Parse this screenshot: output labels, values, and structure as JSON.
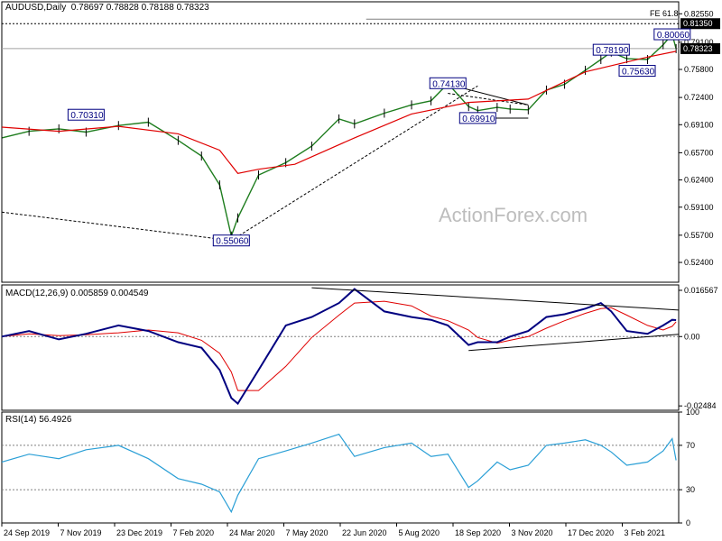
{
  "header": {
    "symbol": "AUDUSD,Daily",
    "ohlc": "0.78697 0.78828 0.78188 0.78323"
  },
  "watermark": "ActionForex.com",
  "colors": {
    "price": "#1e7d1e",
    "ma": "#e00000",
    "macd": "#000080",
    "signal": "#e00000",
    "rsi": "#2a9fd6",
    "label_border": "#000080",
    "grid": "#808080"
  },
  "chart_data": [
    {
      "type": "line",
      "panel": "price",
      "title": "AUDUSD,Daily",
      "ylim": [
        0.5,
        0.84
      ],
      "yticks": [
        "0.82550",
        "0.79100",
        "0.75800",
        "0.72400",
        "0.69100",
        "0.65700",
        "0.62400",
        "0.59100",
        "0.55700",
        "0.52400"
      ],
      "ytick_values": [
        0.8255,
        0.791,
        0.758,
        0.724,
        0.691,
        0.657,
        0.624,
        0.591,
        0.557,
        0.524
      ],
      "xticks": [
        "24 Sep 2019",
        "7 Nov 2019",
        "23 Dec 2019",
        "7 Feb 2020",
        "24 Mar 2020",
        "7 May 2020",
        "22 Jun 2020",
        "5 Aug 2020",
        "18 Sep 2020",
        "3 Nov 2020",
        "17 Dec 2020",
        "3 Feb 2021"
      ],
      "series": [
        {
          "x": [
            "2019-09-24",
            "2019-10-15",
            "2019-11-07",
            "2019-11-28",
            "2019-12-23",
            "2020-01-15",
            "2020-02-07",
            "2020-02-25",
            "2020-03-10",
            "2020-03-19",
            "2020-03-24",
            "2020-04-09",
            "2020-04-30",
            "2020-05-20",
            "2020-06-10",
            "2020-06-22",
            "2020-07-15",
            "2020-08-05",
            "2020-08-20",
            "2020-09-02",
            "2020-09-18",
            "2020-09-25",
            "2020-10-10",
            "2020-10-20",
            "2020-11-03",
            "2020-11-17",
            "2020-12-01",
            "2020-12-17",
            "2020-12-29",
            "2021-01-06",
            "2021-01-18",
            "2021-02-03",
            "2021-02-15",
            "2021-02-22",
            "2021-02-25"
          ],
          "values": [
            0.675,
            0.683,
            0.686,
            0.682,
            0.69,
            0.694,
            0.672,
            0.653,
            0.618,
            0.556,
            0.578,
            0.63,
            0.645,
            0.665,
            0.698,
            0.692,
            0.705,
            0.715,
            0.72,
            0.741,
            0.713,
            0.708,
            0.712,
            0.71,
            0.709,
            0.733,
            0.74,
            0.757,
            0.77,
            0.779,
            0.771,
            0.77,
            0.788,
            0.8006,
            0.7832
          ]
        },
        {
          "name": "",
          "x": [
            "2019-09-24",
            "2019-11-07",
            "2019-12-23",
            "2020-02-07",
            "2020-03-10",
            "2020-03-24",
            "2020-04-09",
            "2020-05-07",
            "2020-06-22",
            "2020-08-05",
            "2020-09-18",
            "2020-11-03",
            "2020-12-17",
            "2021-02-03",
            "2021-02-25"
          ],
          "values": [
            0.688,
            0.683,
            0.689,
            0.68,
            0.66,
            0.632,
            0.637,
            0.643,
            0.675,
            0.704,
            0.718,
            0.722,
            0.755,
            0.773,
            0.78
          ]
        }
      ],
      "labels": [
        {
          "text": "0.70310",
          "x": "2019-11-28",
          "y": 0.7031
        },
        {
          "text": "0.55060",
          "x": "2020-03-19",
          "y": 0.5506
        },
        {
          "text": "0.74130",
          "x": "2020-09-02",
          "y": 0.7413
        },
        {
          "text": "0.69910",
          "x": "2020-09-25",
          "y": 0.6991
        },
        {
          "text": "0.78190",
          "x": "2021-01-06",
          "y": 0.7819
        },
        {
          "text": "0.75630",
          "x": "2021-01-26",
          "y": 0.7563
        },
        {
          "text": "0.80060",
          "x": "2021-02-22",
          "y": 0.8006
        }
      ],
      "annotations": [
        {
          "text": "FE 61.8",
          "y": 0.8135
        },
        {
          "text": "0.81350",
          "y": 0.8135
        },
        {
          "text": "0.78323",
          "y": 0.78323
        }
      ]
    },
    {
      "type": "line",
      "panel": "macd",
      "title": "MACD(12,26,9) 0.005859 0.004549",
      "ylim": [
        -0.0264,
        0.0185
      ],
      "yticks": [
        "0.016567",
        "0.00",
        "-0.02484"
      ],
      "ytick_values": [
        0.016567,
        0.0,
        -0.02484
      ],
      "series": [
        {
          "x": [
            "2019-09-24",
            "2019-10-15",
            "2019-11-07",
            "2019-11-28",
            "2019-12-23",
            "2020-01-15",
            "2020-02-07",
            "2020-02-25",
            "2020-03-10",
            "2020-03-19",
            "2020-03-24",
            "2020-04-09",
            "2020-04-30",
            "2020-05-20",
            "2020-06-10",
            "2020-06-22",
            "2020-07-15",
            "2020-08-05",
            "2020-08-20",
            "2020-09-02",
            "2020-09-18",
            "2020-09-25",
            "2020-10-10",
            "2020-10-20",
            "2020-11-03",
            "2020-11-17",
            "2020-12-01",
            "2020-12-17",
            "2020-12-29",
            "2021-01-06",
            "2021-01-18",
            "2021-02-03",
            "2021-02-15",
            "2021-02-22",
            "2021-02-25"
          ],
          "values": [
            0.0,
            0.002,
            -0.001,
            0.001,
            0.004,
            0.002,
            -0.002,
            -0.004,
            -0.012,
            -0.022,
            -0.024,
            -0.012,
            0.004,
            0.007,
            0.012,
            0.017,
            0.009,
            0.007,
            0.006,
            0.004,
            -0.003,
            -0.002,
            -0.002,
            0.0,
            0.002,
            0.007,
            0.008,
            0.01,
            0.012,
            0.009,
            0.002,
            0.001,
            0.004,
            0.006,
            0.0059
          ]
        }
      ]
    },
    {
      "type": "line",
      "panel": "rsi",
      "title": "RSI(14) 56.4926",
      "ylim": [
        0,
        100
      ],
      "yticks": [
        "100",
        "70",
        "30",
        "0"
      ],
      "ytick_values": [
        100,
        70,
        30,
        0
      ],
      "series": [
        {
          "x": [
            "2019-09-24",
            "2019-10-15",
            "2019-11-07",
            "2019-11-28",
            "2019-12-23",
            "2020-01-15",
            "2020-02-07",
            "2020-02-25",
            "2020-03-10",
            "2020-03-19",
            "2020-03-24",
            "2020-04-09",
            "2020-04-30",
            "2020-05-20",
            "2020-06-10",
            "2020-06-22",
            "2020-07-15",
            "2020-08-05",
            "2020-08-20",
            "2020-09-02",
            "2020-09-18",
            "2020-09-25",
            "2020-10-10",
            "2020-10-20",
            "2020-11-03",
            "2020-11-17",
            "2020-12-01",
            "2020-12-17",
            "2020-12-29",
            "2021-01-06",
            "2021-01-18",
            "2021-02-03",
            "2021-02-15",
            "2021-02-22",
            "2021-02-25"
          ],
          "values": [
            55,
            62,
            58,
            66,
            70,
            58,
            40,
            35,
            28,
            10,
            25,
            58,
            65,
            72,
            80,
            60,
            68,
            72,
            60,
            62,
            32,
            38,
            55,
            48,
            52,
            70,
            72,
            75,
            70,
            64,
            52,
            55,
            65,
            76,
            56.49
          ]
        }
      ]
    }
  ]
}
